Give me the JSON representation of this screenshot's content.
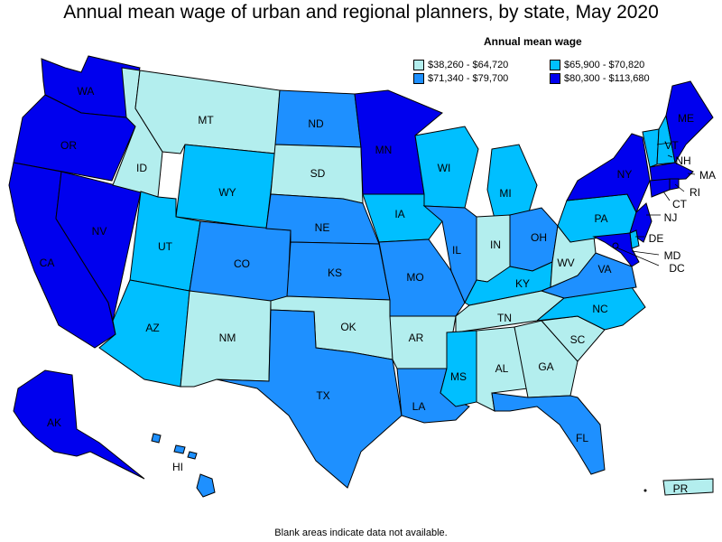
{
  "title": "Annual mean wage of urban and regional planners, by state, May 2020",
  "legend": {
    "title": "Annual mean wage",
    "items": [
      {
        "label": "$38,260 - $64,720",
        "color": "#b3eeee"
      },
      {
        "label": "$65,900 - $70,820",
        "color": "#00bfff"
      },
      {
        "label": "$71,340 - $79,700",
        "color": "#1e90ff"
      },
      {
        "label": "$80,300 - $113,680",
        "color": "#0000ee"
      }
    ]
  },
  "footnote": "Blank areas indicate data not available.",
  "states": {
    "WA": {
      "label": "WA",
      "tier": 3
    },
    "OR": {
      "label": "OR",
      "tier": 3
    },
    "CA": {
      "label": "CA",
      "tier": 3
    },
    "NV": {
      "label": "NV",
      "tier": 3
    },
    "ID": {
      "label": "ID",
      "tier": 0
    },
    "MT": {
      "label": "MT",
      "tier": 0
    },
    "WY": {
      "label": "WY",
      "tier": 1
    },
    "UT": {
      "label": "UT",
      "tier": 1
    },
    "AZ": {
      "label": "AZ",
      "tier": 1
    },
    "CO": {
      "label": "CO",
      "tier": 2
    },
    "NM": {
      "label": "NM",
      "tier": 0
    },
    "ND": {
      "label": "ND",
      "tier": 2
    },
    "SD": {
      "label": "SD",
      "tier": 0
    },
    "NE": {
      "label": "NE",
      "tier": 2
    },
    "KS": {
      "label": "KS",
      "tier": 2
    },
    "OK": {
      "label": "OK",
      "tier": 0
    },
    "TX": {
      "label": "TX",
      "tier": 2
    },
    "MN": {
      "label": "MN",
      "tier": 3
    },
    "IA": {
      "label": "IA",
      "tier": 1
    },
    "MO": {
      "label": "MO",
      "tier": 2
    },
    "AR": {
      "label": "AR",
      "tier": 0
    },
    "LA": {
      "label": "LA",
      "tier": 2
    },
    "WI": {
      "label": "WI",
      "tier": 1
    },
    "IL": {
      "label": "IL",
      "tier": 2
    },
    "MI": {
      "label": "MI",
      "tier": 1
    },
    "IN": {
      "label": "IN",
      "tier": 0
    },
    "OH": {
      "label": "OH",
      "tier": 2
    },
    "KY": {
      "label": "KY",
      "tier": 1
    },
    "TN": {
      "label": "TN",
      "tier": 0
    },
    "MS": {
      "label": "MS",
      "tier": 1
    },
    "AL": {
      "label": "AL",
      "tier": 0
    },
    "GA": {
      "label": "GA",
      "tier": 0
    },
    "FL": {
      "label": "FL",
      "tier": 2
    },
    "SC": {
      "label": "SC",
      "tier": 0
    },
    "NC": {
      "label": "NC",
      "tier": 1
    },
    "VA": {
      "label": "VA",
      "tier": 2
    },
    "WV": {
      "label": "WV",
      "tier": 0
    },
    "PA": {
      "label": "PA",
      "tier": 1
    },
    "NY": {
      "label": "NY",
      "tier": 3
    },
    "VT": {
      "label": "VT",
      "tier": 1
    },
    "NH": {
      "label": "NH",
      "tier": 1
    },
    "ME": {
      "label": "ME",
      "tier": 3
    },
    "MA": {
      "label": "MA",
      "tier": 3
    },
    "RI": {
      "label": "RI",
      "tier": 3
    },
    "CT": {
      "label": "CT",
      "tier": 3
    },
    "NJ": {
      "label": "NJ",
      "tier": 3
    },
    "DE": {
      "label": "DE",
      "tier": 1
    },
    "MD": {
      "label": "MD",
      "tier": 3
    },
    "DC": {
      "label": "DC",
      "tier": 3
    },
    "AK": {
      "label": "AK",
      "tier": 3
    },
    "HI": {
      "label": "HI",
      "tier": 2
    },
    "PR": {
      "label": "PR",
      "tier": 0
    }
  }
}
